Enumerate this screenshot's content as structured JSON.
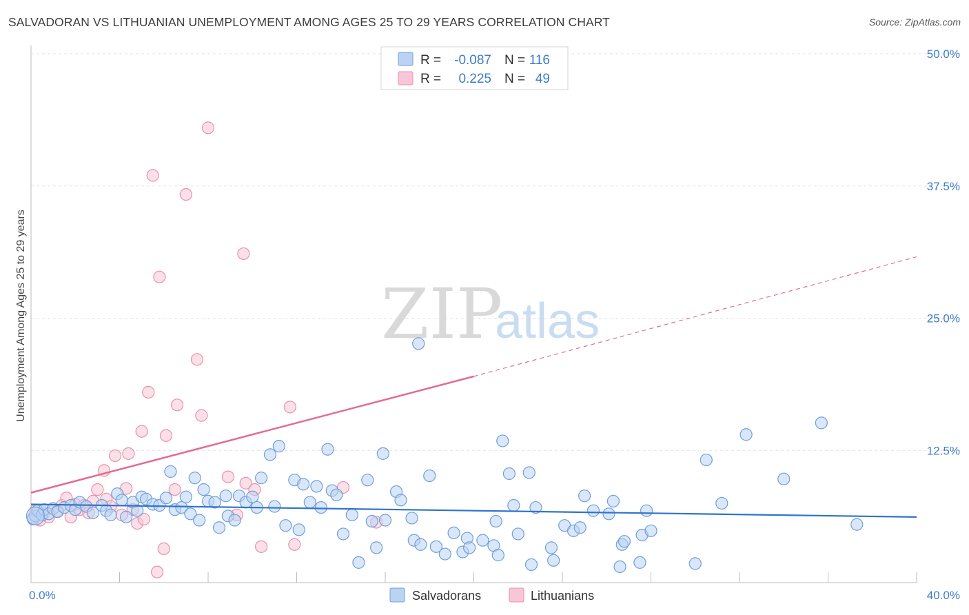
{
  "title": "SALVADORAN VS LITHUANIAN UNEMPLOYMENT AMONG AGES 25 TO 29 YEARS CORRELATION CHART",
  "source": "Source: ZipAtlas.com",
  "watermark": {
    "zip": "ZIP",
    "atlas": "atlas"
  },
  "colors": {
    "salvadoran_fill": "#bad3f3",
    "salvadoran_stroke": "#6f9fdc",
    "salvadoran_line": "#2f74cc",
    "lithuanian_fill": "#f8c6d6",
    "lithuanian_stroke": "#e891ae",
    "lithuanian_line": "#e46a92",
    "axis_text": "#3d7cc9",
    "grid": "#e1e1e1"
  },
  "legend": {
    "rows": [
      {
        "r_label": "R =",
        "r_value": "-0.087",
        "n_label": "N =",
        "n_value": "116"
      },
      {
        "r_label": "R =",
        "r_value": "0.225",
        "n_label": "N =",
        "n_value": "49"
      }
    ]
  },
  "chart_data": {
    "type": "scatter",
    "title": "SALVADORAN VS LITHUANIAN UNEMPLOYMENT AMONG AGES 25 TO 29 YEARS CORRELATION CHART",
    "xlabel": "",
    "ylabel": "Unemployment Among Ages 25 to 29 years",
    "xlim": [
      0,
      40
    ],
    "ylim": [
      0,
      50
    ],
    "x_tick_labels": [
      "0.0%",
      "40.0%"
    ],
    "y_ticks": [
      12.5,
      25.0,
      37.5,
      50.0
    ],
    "y_tick_labels": [
      "12.5%",
      "25.0%",
      "37.5%",
      "50.0%"
    ],
    "grid": true,
    "legend_position": "top-center",
    "series": [
      {
        "name": "Salvadorans",
        "r": -0.087,
        "n": 116,
        "trend": {
          "x0": 0,
          "y0": 7.4,
          "x1": 40,
          "y1": 6.2
        },
        "points": [
          [
            0.1,
            6.0
          ],
          [
            0.2,
            6.3
          ],
          [
            0.3,
            6.8
          ],
          [
            0.5,
            6.4
          ],
          [
            0.6,
            6.9
          ],
          [
            0.8,
            6.5
          ],
          [
            1.0,
            7.0
          ],
          [
            1.2,
            6.7
          ],
          [
            1.5,
            7.1
          ],
          [
            1.8,
            7.3
          ],
          [
            2.0,
            6.9
          ],
          [
            2.2,
            7.6
          ],
          [
            2.5,
            7.2
          ],
          [
            2.8,
            6.6
          ],
          [
            3.2,
            7.3
          ],
          [
            3.4,
            6.8
          ],
          [
            3.6,
            6.4
          ],
          [
            3.9,
            8.4
          ],
          [
            4.1,
            7.8
          ],
          [
            4.3,
            6.2
          ],
          [
            4.6,
            7.6
          ],
          [
            4.8,
            6.8
          ],
          [
            5.0,
            8.1
          ],
          [
            5.2,
            7.9
          ],
          [
            5.5,
            7.4
          ],
          [
            5.8,
            7.3
          ],
          [
            6.1,
            8.0
          ],
          [
            6.3,
            10.5
          ],
          [
            6.5,
            6.9
          ],
          [
            6.8,
            7.1
          ],
          [
            7.0,
            8.1
          ],
          [
            7.2,
            6.5
          ],
          [
            7.4,
            9.9
          ],
          [
            7.6,
            5.9
          ],
          [
            7.8,
            8.8
          ],
          [
            8.0,
            7.7
          ],
          [
            8.3,
            7.6
          ],
          [
            8.5,
            5.2
          ],
          [
            8.8,
            8.2
          ],
          [
            8.9,
            6.3
          ],
          [
            9.2,
            5.9
          ],
          [
            9.4,
            8.2
          ],
          [
            9.7,
            7.6
          ],
          [
            10.0,
            8.1
          ],
          [
            10.2,
            7.1
          ],
          [
            10.4,
            9.9
          ],
          [
            10.8,
            12.1
          ],
          [
            11.0,
            7.2
          ],
          [
            11.2,
            12.9
          ],
          [
            11.5,
            5.4
          ],
          [
            11.9,
            9.7
          ],
          [
            12.1,
            5.0
          ],
          [
            12.3,
            9.3
          ],
          [
            12.6,
            7.6
          ],
          [
            12.9,
            9.1
          ],
          [
            13.1,
            7.1
          ],
          [
            13.4,
            12.6
          ],
          [
            13.6,
            8.7
          ],
          [
            13.8,
            8.3
          ],
          [
            14.1,
            4.6
          ],
          [
            14.5,
            6.4
          ],
          [
            14.8,
            1.9
          ],
          [
            15.2,
            9.7
          ],
          [
            15.4,
            5.8
          ],
          [
            15.6,
            3.3
          ],
          [
            15.9,
            12.2
          ],
          [
            16.0,
            5.9
          ],
          [
            16.5,
            8.6
          ],
          [
            16.7,
            7.8
          ],
          [
            17.2,
            6.1
          ],
          [
            17.3,
            4.0
          ],
          [
            17.6,
            3.6
          ],
          [
            17.5,
            22.6
          ],
          [
            18.0,
            10.1
          ],
          [
            18.3,
            3.4
          ],
          [
            18.7,
            2.7
          ],
          [
            19.1,
            4.7
          ],
          [
            19.5,
            2.9
          ],
          [
            19.7,
            4.2
          ],
          [
            19.8,
            3.3
          ],
          [
            20.4,
            4.0
          ],
          [
            20.9,
            3.5
          ],
          [
            21.0,
            5.8
          ],
          [
            21.1,
            2.6
          ],
          [
            21.3,
            13.4
          ],
          [
            21.6,
            10.3
          ],
          [
            21.8,
            7.3
          ],
          [
            22.0,
            4.6
          ],
          [
            22.5,
            10.4
          ],
          [
            22.6,
            1.7
          ],
          [
            22.8,
            7.1
          ],
          [
            23.5,
            3.3
          ],
          [
            23.6,
            2.1
          ],
          [
            24.1,
            5.4
          ],
          [
            24.5,
            4.9
          ],
          [
            24.8,
            5.2
          ],
          [
            25.0,
            8.2
          ],
          [
            25.4,
            6.8
          ],
          [
            26.1,
            6.5
          ],
          [
            26.3,
            7.7
          ],
          [
            26.6,
            1.5
          ],
          [
            26.7,
            3.6
          ],
          [
            26.8,
            3.9
          ],
          [
            27.5,
            1.9
          ],
          [
            27.6,
            4.5
          ],
          [
            27.8,
            6.8
          ],
          [
            28.0,
            4.9
          ],
          [
            30.0,
            1.8
          ],
          [
            30.5,
            11.6
          ],
          [
            31.2,
            7.5
          ],
          [
            32.3,
            14.0
          ],
          [
            34.0,
            9.8
          ],
          [
            35.7,
            15.1
          ],
          [
            37.3,
            5.5
          ]
        ]
      },
      {
        "name": "Lithuanians",
        "r": 0.225,
        "n": 49,
        "trend": {
          "x0": 0,
          "y0": 8.5,
          "x1": 20,
          "y1": 19.5,
          "dashed_to_x": 40,
          "dashed_to_y": 30.8
        },
        "points": [
          [
            0.1,
            6.1
          ],
          [
            0.2,
            6.8
          ],
          [
            0.4,
            5.9
          ],
          [
            0.6,
            6.6
          ],
          [
            0.8,
            6.2
          ],
          [
            1.0,
            7.0
          ],
          [
            1.2,
            6.8
          ],
          [
            1.4,
            7.3
          ],
          [
            1.6,
            8.0
          ],
          [
            1.8,
            6.2
          ],
          [
            2.0,
            7.4
          ],
          [
            2.2,
            6.9
          ],
          [
            2.4,
            7.3
          ],
          [
            2.6,
            6.6
          ],
          [
            2.8,
            7.7
          ],
          [
            3.0,
            8.8
          ],
          [
            3.3,
            10.6
          ],
          [
            3.4,
            7.9
          ],
          [
            3.6,
            7.2
          ],
          [
            3.8,
            12.0
          ],
          [
            4.1,
            6.4
          ],
          [
            4.3,
            8.9
          ],
          [
            4.4,
            12.2
          ],
          [
            4.6,
            6.9
          ],
          [
            4.8,
            5.6
          ],
          [
            5.0,
            14.3
          ],
          [
            5.1,
            6.0
          ],
          [
            5.3,
            18.0
          ],
          [
            5.5,
            38.5
          ],
          [
            5.7,
            1.0
          ],
          [
            5.8,
            28.9
          ],
          [
            6.0,
            3.2
          ],
          [
            6.1,
            13.9
          ],
          [
            6.5,
            8.8
          ],
          [
            6.6,
            16.8
          ],
          [
            7.0,
            36.7
          ],
          [
            7.5,
            21.1
          ],
          [
            7.7,
            15.8
          ],
          [
            8.0,
            43.0
          ],
          [
            8.9,
            10.0
          ],
          [
            9.3,
            6.4
          ],
          [
            9.6,
            31.1
          ],
          [
            9.7,
            9.4
          ],
          [
            10.1,
            8.8
          ],
          [
            10.4,
            3.4
          ],
          [
            11.7,
            16.6
          ],
          [
            11.9,
            3.6
          ],
          [
            14.1,
            9.0
          ],
          [
            15.6,
            5.7
          ]
        ]
      }
    ]
  }
}
